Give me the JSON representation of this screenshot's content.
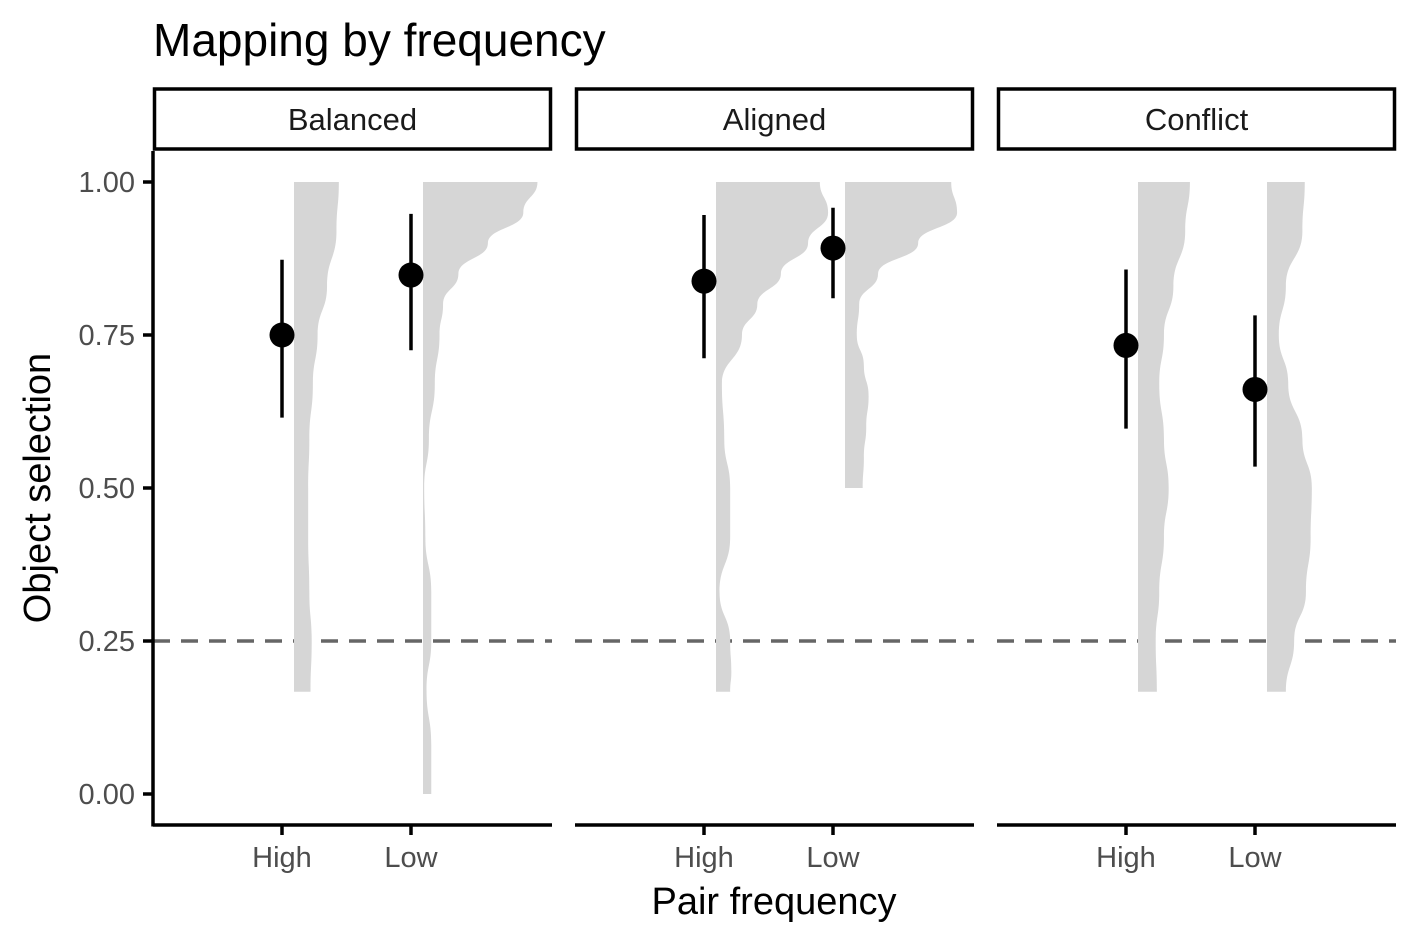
{
  "chart_data": {
    "type": "scatter",
    "subtype": "pointrange with half-violin distributions, faceted",
    "title": "Mapping by frequency",
    "xlabel": "Pair frequency",
    "ylabel": "Object selection",
    "categories": [
      "High",
      "Low"
    ],
    "ylim": [
      0,
      1
    ],
    "yticks": [
      "0.00",
      "0.25",
      "0.50",
      "0.75",
      "1.00"
    ],
    "reference_line": {
      "y": 0.25,
      "style": "dashed",
      "color": "#666666"
    },
    "grid": false,
    "legend": "none",
    "colors": {
      "point": "#000000",
      "violin": "#d6d6d6",
      "axis": "#000000"
    },
    "facets": [
      {
        "label": "Balanced",
        "points": [
          {
            "category": "High",
            "mean": 0.75,
            "lower": 0.615,
            "upper": 0.873
          },
          {
            "category": "Low",
            "mean": 0.848,
            "lower": 0.725,
            "upper": 0.948
          }
        ],
        "distributions": [
          {
            "category": "High",
            "y": [
              0.167,
              0.25,
              0.33,
              0.42,
              0.5,
              0.58,
              0.67,
              0.75,
              0.83,
              0.92,
              1.0
            ],
            "density": [
              0.14,
              0.15,
              0.13,
              0.12,
              0.12,
              0.13,
              0.16,
              0.2,
              0.28,
              0.36,
              0.38
            ]
          },
          {
            "category": "Low",
            "y": [
              0.0,
              0.08,
              0.17,
              0.25,
              0.33,
              0.42,
              0.5,
              0.58,
              0.67,
              0.75,
              0.8,
              0.85,
              0.9,
              0.95,
              1.0
            ],
            "density": [
              0.07,
              0.07,
              0.03,
              0.07,
              0.07,
              0.02,
              0.01,
              0.05,
              0.1,
              0.14,
              0.17,
              0.3,
              0.55,
              0.85,
              0.97
            ]
          }
        ]
      },
      {
        "label": "Aligned",
        "points": [
          {
            "category": "High",
            "mean": 0.838,
            "lower": 0.712,
            "upper": 0.946
          },
          {
            "category": "Low",
            "mean": 0.892,
            "lower": 0.81,
            "upper": 0.958
          }
        ],
        "distributions": [
          {
            "category": "High",
            "y": [
              0.167,
              0.2,
              0.25,
              0.33,
              0.42,
              0.5,
              0.58,
              0.67,
              0.75,
              0.8,
              0.85,
              0.9,
              0.95,
              1.0
            ],
            "density": [
              0.12,
              0.13,
              0.12,
              0.03,
              0.12,
              0.12,
              0.07,
              0.05,
              0.22,
              0.35,
              0.55,
              0.78,
              0.95,
              0.88
            ]
          },
          {
            "category": "Low",
            "y": [
              0.5,
              0.55,
              0.6,
              0.65,
              0.7,
              0.75,
              0.8,
              0.85,
              0.9,
              0.95,
              1.0
            ],
            "density": [
              0.15,
              0.16,
              0.18,
              0.2,
              0.16,
              0.1,
              0.12,
              0.28,
              0.62,
              0.95,
              0.9
            ]
          }
        ]
      },
      {
        "label": "Conflict",
        "points": [
          {
            "category": "High",
            "mean": 0.733,
            "lower": 0.597,
            "upper": 0.857
          },
          {
            "category": "Low",
            "mean": 0.661,
            "lower": 0.535,
            "upper": 0.782
          }
        ],
        "distributions": [
          {
            "category": "High",
            "y": [
              0.167,
              0.25,
              0.33,
              0.42,
              0.5,
              0.58,
              0.67,
              0.75,
              0.83,
              0.92,
              1.0
            ],
            "density": [
              0.16,
              0.15,
              0.18,
              0.22,
              0.26,
              0.22,
              0.18,
              0.22,
              0.3,
              0.4,
              0.44
            ]
          },
          {
            "category": "Low",
            "y": [
              0.167,
              0.25,
              0.33,
              0.42,
              0.5,
              0.58,
              0.67,
              0.75,
              0.83,
              0.92,
              1.0
            ],
            "density": [
              0.16,
              0.23,
              0.33,
              0.37,
              0.38,
              0.3,
              0.18,
              0.1,
              0.16,
              0.3,
              0.32
            ]
          }
        ]
      }
    ]
  }
}
